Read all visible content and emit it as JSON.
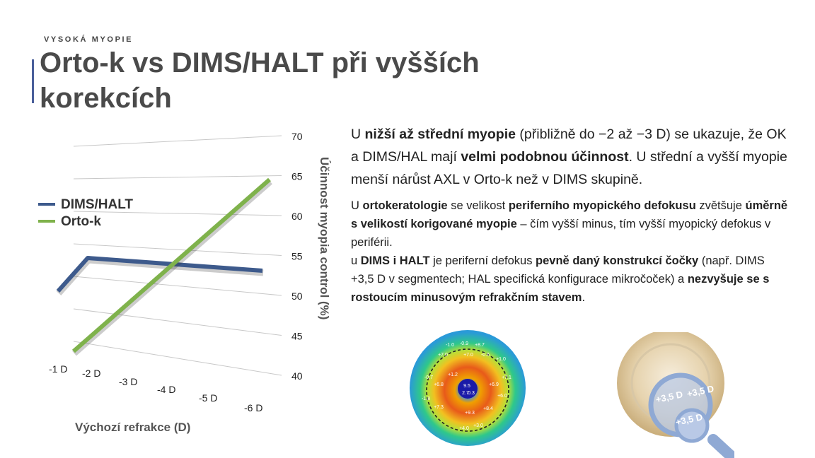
{
  "slide": {
    "kicker": "VYSOKÁ MYOPIE",
    "title": "Orto-k vs DIMS/HALT při vyšších korekcích",
    "accent_color": "#4a5f9a"
  },
  "chart_data": {
    "type": "line",
    "x_label": "Výchozí refrakce (D)",
    "y_label": "Účinnost myopia control (%)",
    "categories": [
      "-1 D",
      "-2 D",
      "-3 D",
      "-4 D",
      "-5 D",
      "-6 D"
    ],
    "y_ticks": [
      "70",
      "65",
      "60",
      "55",
      "50",
      "45",
      "40"
    ],
    "ylim": [
      40,
      70
    ],
    "grid": true,
    "legend_position": "left",
    "series": [
      {
        "name": "DIMS/HALT",
        "color": "#3d5a8c",
        "values": [
          52,
          55,
          54.8,
          54.6,
          54.4,
          54.2
        ]
      },
      {
        "name": "Orto-k",
        "color": "#7fb24c",
        "values": [
          42,
          47,
          52,
          57,
          61,
          65
        ]
      }
    ]
  },
  "text": {
    "p1": [
      {
        "t": "U "
      },
      {
        "t": "nižší až střední myopie",
        "b": true
      },
      {
        "t": " (přibližně do −2 až −3 D) se ukazuje, že OK a DIMS/HAL mají "
      },
      {
        "t": "velmi podobnou účinnost",
        "b": true
      },
      {
        "t": ". U střední a vyšší myopie menší nárůst AXL v Orto-k než v DIMS skupině."
      }
    ],
    "p2": [
      {
        "t": "U "
      },
      {
        "t": "ortokeratologie",
        "b": true
      },
      {
        "t": " se velikost "
      },
      {
        "t": "periferního myopického defokusu",
        "b": true
      },
      {
        "t": " zvětšuje "
      },
      {
        "t": "úměrně s velikostí korigované myopie",
        "b": true
      },
      {
        "t": " – čím vyšší minus, tím vyšší myopický defokus v periférii."
      }
    ],
    "p3": [
      {
        "t": "u "
      },
      {
        "t": "DIMS i HALT",
        "b": true
      },
      {
        "t": " je periferní defokus "
      },
      {
        "t": "pevně daný konstrukcí čočky",
        "b": true
      },
      {
        "t": " (např. DIMS +3,5 D v segmentech; HAL specifická konfigurace mikročoček) a "
      },
      {
        "t": "nezvyšuje se s rostoucím minusovým refrakčním stavem",
        "b": true
      },
      {
        "t": "."
      }
    ]
  },
  "topography": {
    "values": [
      "-1.0",
      "-0.9",
      "+8.7",
      "+7.0",
      "+7.0",
      "-0.6",
      "+1.0",
      "-0.7",
      "+6.8",
      "+1.2",
      "+6.9",
      "+7.1",
      "+6.0",
      "9.5",
      "2.7",
      "0.3",
      "-1.8",
      "+7.3",
      "+8.4",
      "+9.3",
      "+4.0",
      "+3.0"
    ]
  },
  "lens_labels": [
    "+3,5 D",
    "+3,5 D",
    "+3,5 D"
  ]
}
